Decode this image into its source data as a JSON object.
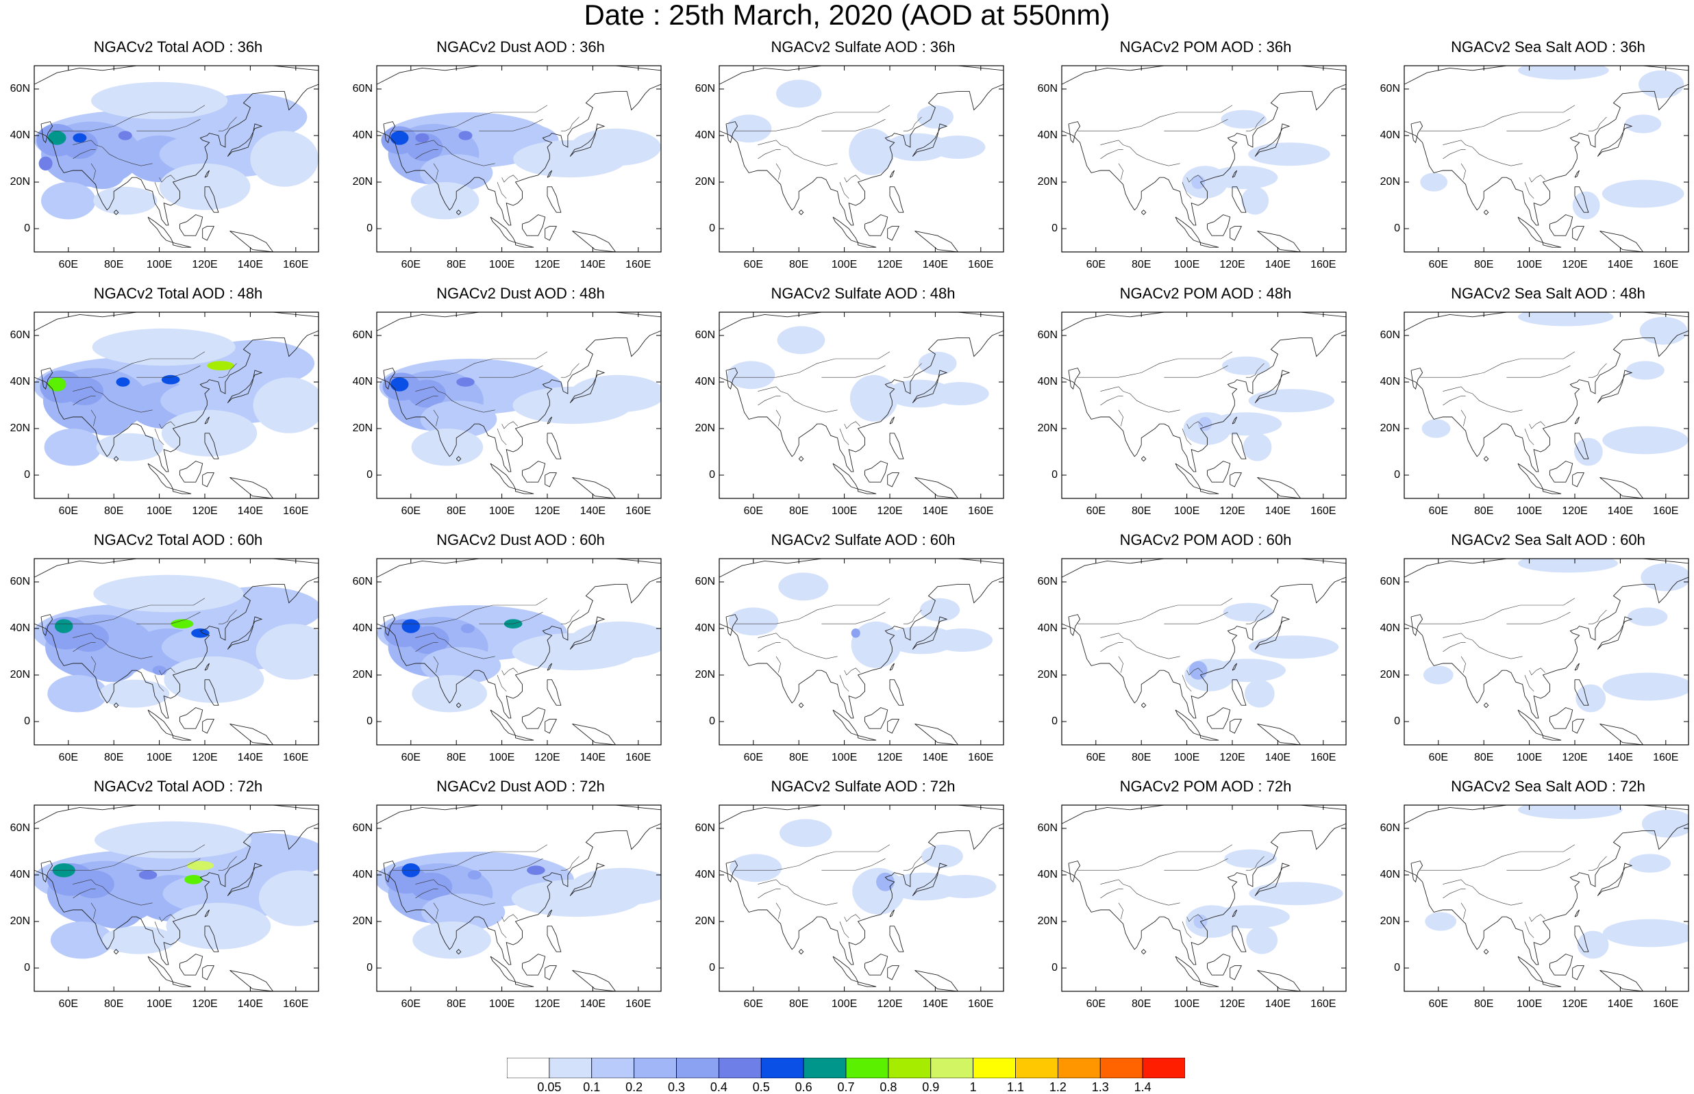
{
  "title": "Date : 25th March, 2020 (AOD at 550nm)",
  "lat_ticks": [
    "60N",
    "40N",
    "20N",
    "0"
  ],
  "lon_ticks": [
    "60E",
    "80E",
    "100E",
    "120E",
    "140E",
    "160E"
  ],
  "map_extent": {
    "lon_min": 45,
    "lon_max": 170,
    "lat_min": -10,
    "lat_max": 70
  },
  "colorbar": {
    "labels": [
      "0.05",
      "0.1",
      "0.2",
      "0.3",
      "0.4",
      "0.5",
      "0.6",
      "0.7",
      "0.8",
      "0.9",
      "1",
      "1.1",
      "1.2",
      "1.3",
      "1.4"
    ],
    "colors": [
      "#ffffff",
      "#d4e1fb",
      "#b9cbfa",
      "#a0b6f7",
      "#8ba1f1",
      "#6e7fe8",
      "#0a50e6",
      "#00968c",
      "#5af000",
      "#a6ec00",
      "#d2f564",
      "#ffff00",
      "#ffc800",
      "#ff9600",
      "#ff6400",
      "#ff1e00"
    ]
  },
  "rows": [
    {
      "lead": "36h",
      "titles": [
        "NGACv2 Total AOD : 36h",
        "NGACv2 Dust AOD : 36h",
        "NGACv2 Sulfate AOD : 36h",
        "NGACv2 POM AOD : 36h",
        "NGACv2 Sea Salt AOD : 36h"
      ]
    },
    {
      "lead": "48h",
      "titles": [
        "NGACv2 Total AOD : 48h",
        "NGACv2 Dust AOD : 48h",
        "NGACv2 Sulfate AOD : 48h",
        "NGACv2 POM AOD : 48h",
        "NGACv2 Sea Salt AOD : 48h"
      ]
    },
    {
      "lead": "60h",
      "titles": [
        "NGACv2 Total AOD : 60h",
        "NGACv2 Dust AOD : 60h",
        "NGACv2 Sulfate AOD : 60h",
        "NGACv2 POM AOD : 60h",
        "NGACv2 Sea Salt AOD : 60h"
      ]
    },
    {
      "lead": "72h",
      "titles": [
        "NGACv2 Total AOD : 72h",
        "NGACv2 Dust AOD : 72h",
        "NGACv2 Sulfate AOD : 72h",
        "NGACv2 POM AOD : 72h",
        "NGACv2 Sea Salt  AOD : 72h"
      ]
    }
  ],
  "species": [
    "total",
    "dust",
    "sulfate",
    "pom",
    "seasalt"
  ]
}
